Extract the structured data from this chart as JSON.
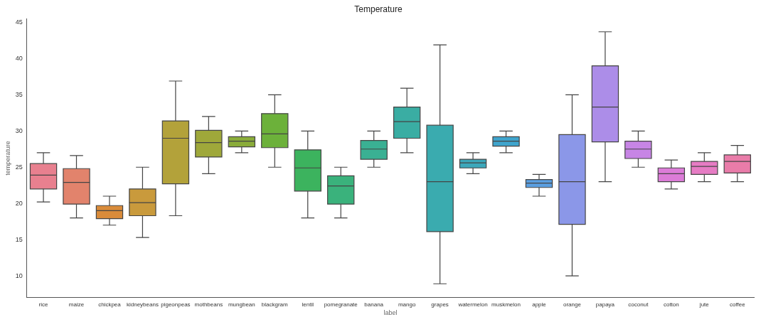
{
  "chart_data": {
    "type": "box",
    "title": "Temperature",
    "xlabel": "label",
    "ylabel": "temperature",
    "categories": [
      "rice",
      "maize",
      "chickpea",
      "kidneybeans",
      "pigeonpeas",
      "mothbeans",
      "mungbean",
      "blackgram",
      "lentil",
      "pomegranate",
      "banana",
      "mango",
      "grapes",
      "watermelon",
      "muskmelon",
      "apple",
      "orange",
      "papaya",
      "coconut",
      "cotton",
      "jute",
      "coffee"
    ],
    "colors": [
      "#e8808f",
      "#e2836c",
      "#d98b3a",
      "#c99a3c",
      "#b3a23a",
      "#9fa83a",
      "#8aac3a",
      "#6cb13a",
      "#3cb35e",
      "#3ab27c",
      "#3ab093",
      "#3aada3",
      "#3aabaf",
      "#3ca8bb",
      "#3fa4cc",
      "#5b9fe0",
      "#8b97e8",
      "#ac8de8",
      "#c785e5",
      "#dc7cd8",
      "#e67cc4",
      "#e97ca9"
    ],
    "boxes": [
      {
        "low": 20.2,
        "q1": 22.0,
        "median": 23.9,
        "q3": 25.5,
        "high": 27.0
      },
      {
        "low": 18.0,
        "q1": 19.9,
        "median": 22.9,
        "q3": 24.8,
        "high": 26.6
      },
      {
        "low": 17.0,
        "q1": 17.9,
        "median": 19.0,
        "q3": 19.7,
        "high": 21.0
      },
      {
        "low": 15.3,
        "q1": 18.3,
        "median": 20.1,
        "q3": 22.0,
        "high": 25.0
      },
      {
        "low": 18.3,
        "q1": 22.7,
        "median": 29.0,
        "q3": 31.4,
        "high": 36.9
      },
      {
        "low": 24.1,
        "q1": 26.4,
        "median": 28.4,
        "q3": 30.1,
        "high": 32.0
      },
      {
        "low": 27.0,
        "q1": 27.8,
        "median": 28.6,
        "q3": 29.2,
        "high": 30.0
      },
      {
        "low": 25.0,
        "q1": 27.7,
        "median": 29.6,
        "q3": 32.4,
        "high": 35.0
      },
      {
        "low": 18.0,
        "q1": 21.7,
        "median": 24.9,
        "q3": 27.4,
        "high": 30.0
      },
      {
        "low": 18.0,
        "q1": 19.9,
        "median": 22.4,
        "q3": 23.8,
        "high": 25.0
      },
      {
        "low": 25.0,
        "q1": 26.1,
        "median": 27.5,
        "q3": 28.7,
        "high": 30.0
      },
      {
        "low": 27.0,
        "q1": 29.0,
        "median": 31.3,
        "q3": 33.3,
        "high": 35.9
      },
      {
        "low": 8.9,
        "q1": 16.1,
        "median": 23.0,
        "q3": 30.8,
        "high": 41.9
      },
      {
        "low": 24.1,
        "q1": 24.9,
        "median": 25.6,
        "q3": 26.1,
        "high": 27.0
      },
      {
        "low": 27.0,
        "q1": 27.9,
        "median": 28.6,
        "q3": 29.2,
        "high": 30.0
      },
      {
        "low": 21.0,
        "q1": 22.2,
        "median": 22.8,
        "q3": 23.3,
        "high": 24.0
      },
      {
        "low": 10.0,
        "q1": 17.1,
        "median": 23.0,
        "q3": 29.5,
        "high": 35.0
      },
      {
        "low": 23.0,
        "q1": 28.5,
        "median": 33.3,
        "q3": 39.0,
        "high": 43.7
      },
      {
        "low": 25.0,
        "q1": 26.2,
        "median": 27.5,
        "q3": 28.6,
        "high": 30.0
      },
      {
        "low": 22.0,
        "q1": 23.0,
        "median": 24.1,
        "q3": 24.9,
        "high": 26.0
      },
      {
        "low": 23.0,
        "q1": 24.0,
        "median": 25.1,
        "q3": 25.8,
        "high": 27.0
      },
      {
        "low": 23.0,
        "q1": 24.2,
        "median": 25.8,
        "q3": 26.7,
        "high": 28.0
      }
    ],
    "ylim": [
      7,
      45.5
    ],
    "yticks": [
      10,
      15,
      20,
      25,
      30,
      35,
      40,
      45
    ],
    "grid": false,
    "legend": false
  }
}
